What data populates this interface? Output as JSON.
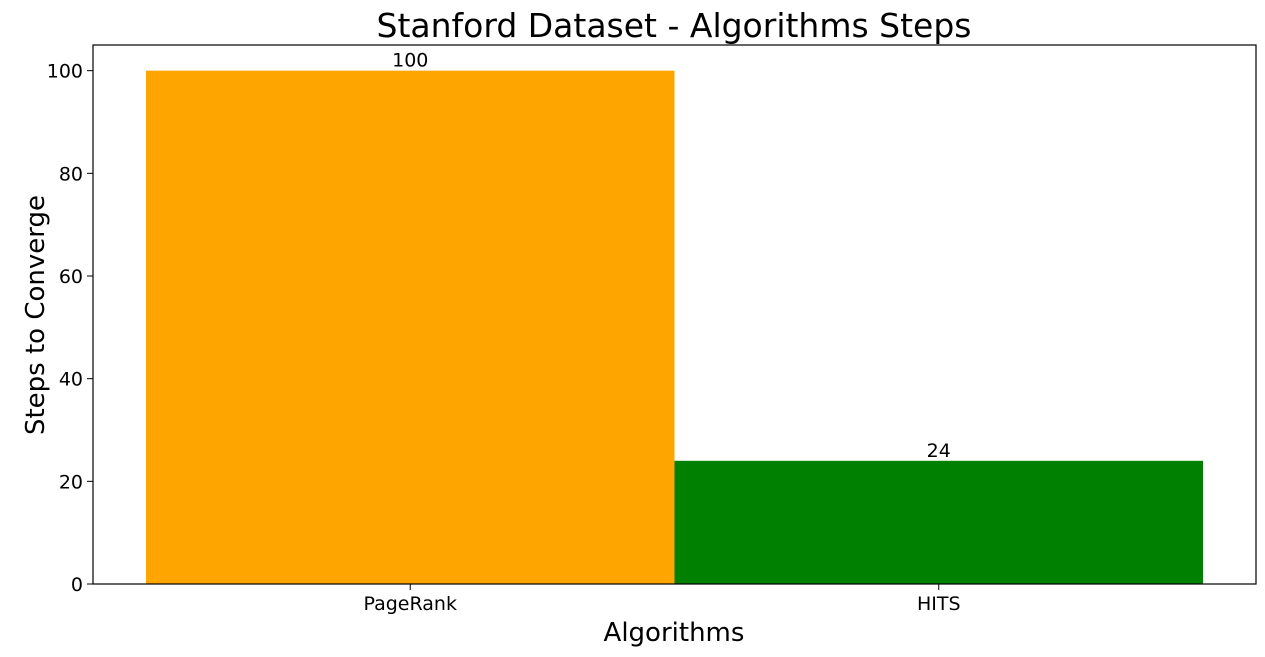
{
  "chart_data": {
    "type": "bar",
    "title": "Stanford Dataset - Algorithms Steps",
    "xlabel": "Algorithms",
    "ylabel": "Steps to Converge",
    "categories": [
      "PageRank",
      "HITS"
    ],
    "values": [
      100,
      24
    ],
    "data_labels": [
      "100",
      "24"
    ],
    "colors": [
      "#ffa500",
      "#008000"
    ],
    "ylim": [
      0,
      105
    ],
    "yticks": [
      0,
      20,
      40,
      60,
      80,
      100
    ],
    "ytick_labels": [
      "0",
      "20",
      "40",
      "60",
      "80",
      "100"
    ],
    "grid": false,
    "legend": null
  }
}
